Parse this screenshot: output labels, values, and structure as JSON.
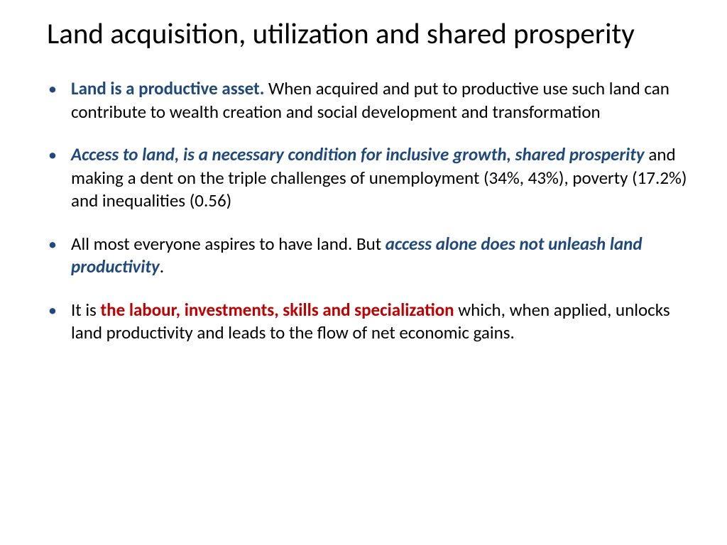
{
  "title": "Land acquisition, utilization and shared prosperity",
  "bullets": [
    {
      "b1_lead": "Land is a productive asset.",
      "b1_rest": " When acquired and put to productive use such land can contribute to wealth creation and social development and transformation"
    },
    {
      "b2_lead": "Access to land, is a necessary condition for inclusive growth, shared prosperity",
      "b2_rest": " and making a dent on the triple challenges of unemployment (34%, 43%), poverty (17.2%) and inequalities (0.56)"
    },
    {
      "b3_pre": "All most everyone aspires to have land. But ",
      "b3_em": "access alone does not unleash  land productivity",
      "b3_post": "."
    },
    {
      "b4_pre": "It is ",
      "b4_em": "the labour, investments, skills and specialization",
      "b4_post": " which, when applied, unlocks land productivity and leads to the flow of net economic gains."
    }
  ],
  "colors": {
    "accent_blue": "#1f497d",
    "accent_red": "#c00000",
    "text": "#000000",
    "background": "#ffffff"
  }
}
